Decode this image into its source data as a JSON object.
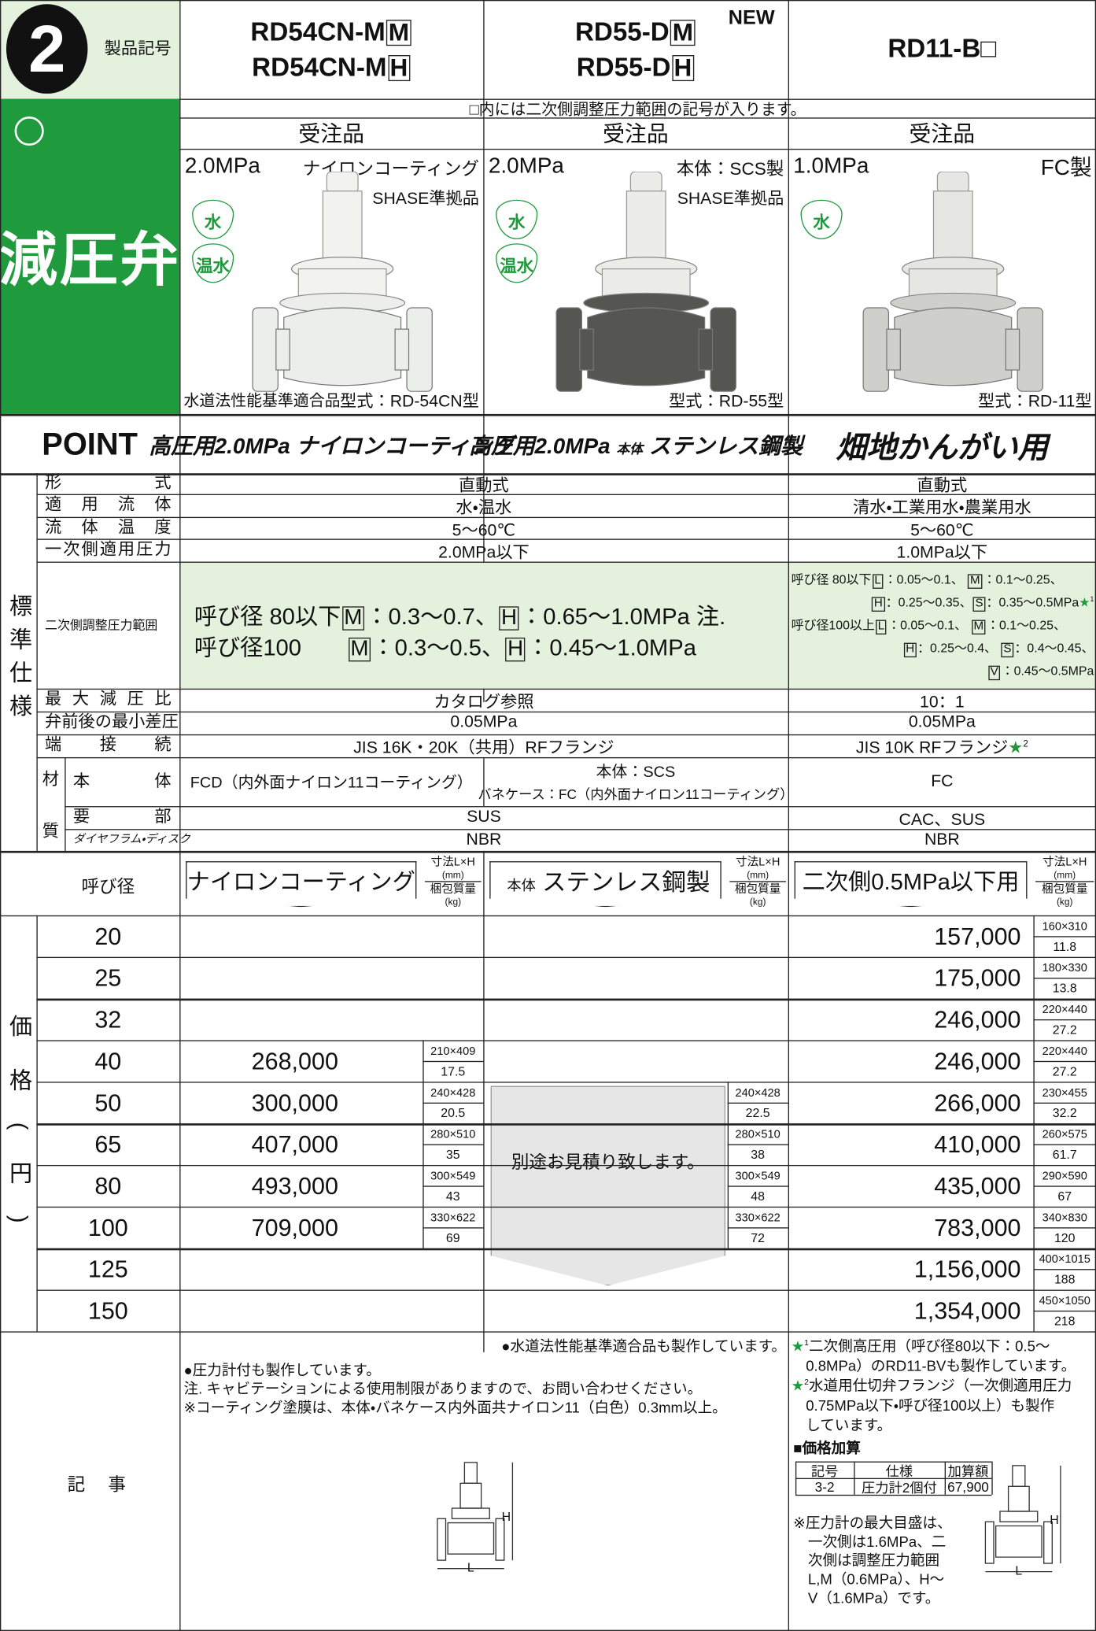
{
  "header": {
    "number": "2",
    "code_label": "製品記号",
    "category": "減圧弁",
    "new_badge": "NEW",
    "models": [
      [
        [
          "RD54CN-M",
          {
            "box": "M"
          }
        ],
        [
          "RD54CN-M",
          {
            "box": "H"
          }
        ]
      ],
      [
        [
          "RD55-D",
          {
            "box": "M"
          }
        ],
        [
          "RD55-D",
          {
            "box": "H"
          }
        ]
      ],
      [
        [
          "RD11-B□"
        ]
      ]
    ],
    "note": "□内には二次側調整圧力範囲の記号が入ります。",
    "order": [
      "受注品",
      "受注品",
      "受注品"
    ]
  },
  "products": [
    {
      "pressure": "2.0MPa",
      "feature": "ナイロンコーティング",
      "standard": "SHASE準拠品",
      "media": [
        "水",
        "温水"
      ],
      "approval": "水道法性能基準適合品",
      "model_type": "型式：RD-54CN型"
    },
    {
      "pressure": "2.0MPa",
      "feature": "本体：SCS製",
      "standard": "SHASE準拠品",
      "media": [
        "水",
        "温水"
      ],
      "model_type": "型式：RD-55型"
    },
    {
      "pressure": "1.0MPa",
      "feature": "FC製",
      "media": [
        "水"
      ],
      "model_type": "型式：RD-11型"
    }
  ],
  "point": {
    "label": "POINT",
    "items": [
      [
        "高圧用2.0MPa ナイロンコーティング"
      ],
      [
        "高圧用2.0MPa",
        {
          "small": "本体"
        },
        "ステンレス鋼製"
      ],
      [
        "畑地かんがい用"
      ]
    ]
  },
  "spec": {
    "section_label": "標準仕様",
    "rows": [
      {
        "label": "形式",
        "ab": "直動式",
        "c": "直動式"
      },
      {
        "label": "適用流体",
        "ab": "水・温水",
        "c": "清水・工業用水・農業用水"
      },
      {
        "label": "流体温度",
        "ab": "5～60℃",
        "c": "5～60℃"
      },
      {
        "label": "一次側適用圧力",
        "ab": "2.0MPa以下",
        "c": "1.0MPa以下"
      }
    ],
    "secondary": {
      "label": "二次側調整圧力範囲",
      "ab": [
        [
          "呼び径 80以下",
          {
            "box": "M"
          },
          "：0.3～0.7、",
          {
            "box": "H"
          },
          "：0.65～1.0MPa 注."
        ],
        [
          "呼び径100　　",
          {
            "box": "M"
          },
          "：0.3～0.5、",
          {
            "box": "H"
          },
          "：0.45～1.0MPa"
        ]
      ],
      "c": [
        [
          "呼び径 80以下",
          {
            "box": "L"
          },
          "：0.05～0.1、 ",
          {
            "box": "M"
          },
          "：0.1～0.25、"
        ],
        [
          {
            "box": "H"
          },
          "：0.25～0.35、",
          {
            "box": "S"
          },
          "：0.35～0.5MPa",
          {
            "star": "★"
          },
          {
            "sup": "1"
          }
        ],
        [
          "呼び径100以上",
          {
            "box": "L"
          },
          "：0.05～0.1、 ",
          {
            "box": "M"
          },
          "：0.1～0.25、"
        ],
        [
          {
            "box": "H"
          },
          "：0.25～0.4、 ",
          {
            "box": "S"
          },
          "：0.4～0.45、"
        ],
        [
          {
            "box": "V"
          },
          "：0.45～0.5MPa"
        ]
      ]
    },
    "rows2": [
      {
        "label": "最大減圧比",
        "ab": "カタログ参照",
        "c": "10：1"
      },
      {
        "label": "弁前後の最小差圧",
        "ab": "0.05MPa",
        "c": "0.05MPa"
      },
      {
        "label": "端接続",
        "ab": "JIS 16K・20K（共用）RFフランジ",
        "c": [
          "JIS 10K RFフランジ",
          {
            "star": "★"
          },
          {
            "sup": "2"
          }
        ]
      }
    ],
    "material": {
      "label": "材質",
      "body_label": "本体",
      "body_a": "FCD（内外面ナイロン11コーティング）",
      "body_b": [
        "本体：SCS",
        "バネケース：FC（内外面ナイロン11コーティング）"
      ],
      "body_c": "FC",
      "main_label": "要部",
      "main_ab": "SUS",
      "main_c": "CAC、SUS",
      "disc_label": "ダイヤフラム・ディスク",
      "disc_ab": "NBR",
      "disc_c": "NBR"
    }
  },
  "price": {
    "size_label": "呼び径",
    "section_label": "価格(円)",
    "titles": [
      [
        "ナイロンコーティング"
      ],
      [
        {
          "small": "本体"
        },
        "ステンレス鋼製"
      ],
      [
        "二次側0.5MPa以下用"
      ]
    ],
    "dim_header": [
      "寸法L×H",
      "(mm)",
      "梱包質量",
      "(kg)"
    ],
    "quote": "別途お見積り致します。",
    "rows": [
      {
        "size": 20,
        "c": {
          "price": "157,000",
          "dim": "160×310",
          "weight": "11.8"
        }
      },
      {
        "size": 25,
        "c": {
          "price": "175,000",
          "dim": "180×330",
          "weight": "13.8"
        }
      },
      {
        "size": 32,
        "c": {
          "price": "246,000",
          "dim": "220×440",
          "weight": "27.2"
        }
      },
      {
        "size": 40,
        "a": {
          "price": "268,000",
          "dim": "210×409",
          "weight": "17.5"
        },
        "c": {
          "price": "246,000",
          "dim": "220×440",
          "weight": "27.2"
        }
      },
      {
        "size": 50,
        "a": {
          "price": "300,000",
          "dim": "240×428",
          "weight": "20.5"
        },
        "b": {
          "dim": "240×428",
          "weight": "22.5"
        },
        "c": {
          "price": "266,000",
          "dim": "230×455",
          "weight": "32.2"
        }
      },
      {
        "size": 65,
        "a": {
          "price": "407,000",
          "dim": "280×510",
          "weight": "35"
        },
        "b": {
          "dim": "280×510",
          "weight": "38"
        },
        "c": {
          "price": "410,000",
          "dim": "260×575",
          "weight": "61.7"
        }
      },
      {
        "size": 80,
        "a": {
          "price": "493,000",
          "dim": "300×549",
          "weight": "43"
        },
        "b": {
          "dim": "300×549",
          "weight": "48"
        },
        "c": {
          "price": "435,000",
          "dim": "290×590",
          "weight": "67"
        }
      },
      {
        "size": 100,
        "a": {
          "price": "709,000",
          "dim": "330×622",
          "weight": "69"
        },
        "b": {
          "dim": "330×622",
          "weight": "72"
        },
        "c": {
          "price": "783,000",
          "dim": "340×830",
          "weight": "120"
        }
      },
      {
        "size": 125,
        "c": {
          "price": "1,156,000",
          "dim": "400×1015",
          "weight": "188"
        }
      },
      {
        "size": 150,
        "c": {
          "price": "1,354,000",
          "dim": "450×1050",
          "weight": "218"
        }
      }
    ]
  },
  "notes": {
    "label": "記事",
    "b": "●水道法性能基準適合品も製作しています。",
    "a": [
      "●圧力計付も製作しています。",
      "注. キャビテーションによる使用制限がありますので、お問い合わせください。",
      "※コーティング塗膜は、本体・バネケース内外面共ナイロン11（白色）0.3mm以上。"
    ],
    "c": [
      [
        {
          "star": "★"
        },
        {
          "sup": "1"
        },
        "二次側高圧用（呼び径80以下：0.5～"
      ],
      [
        "　0.8MPa）のRD11-BVも製作しています。"
      ],
      [
        {
          "star": "★"
        },
        {
          "sup": "2"
        },
        "水道用仕切弁フランジ（一次側適用圧力"
      ],
      [
        "　0.75MPa以下・呼び径100以上）も製作"
      ],
      [
        "　しています。"
      ]
    ],
    "addition_title": "■価格加算",
    "addition_header": [
      "記号",
      "仕様",
      "加算額"
    ],
    "addition_row": [
      "3-2",
      "圧力計2個付",
      "67,900"
    ],
    "gauge": [
      "※圧力計の最大目盛は、",
      "　一次側は1.6MPa、二",
      "　次側は調整圧力範囲",
      "　L,M（0.6MPa）、H～",
      "　V（1.6MPa）です。"
    ],
    "dim_labels": [
      "H",
      "L"
    ]
  }
}
